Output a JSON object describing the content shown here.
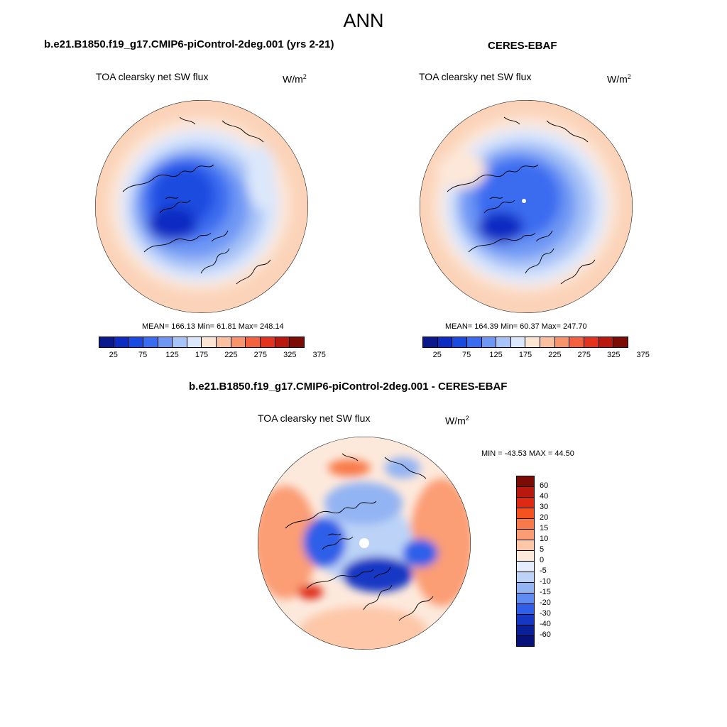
{
  "title": "ANN",
  "panels": {
    "model": {
      "title": "b.e21.B1850.f19_g17.CMIP6-piControl-2deg.001 (yrs 2-21)",
      "variable": "TOA clearsky net SW flux",
      "unit_base": "W/m",
      "unit_exp": "2",
      "stats": "MEAN= 166.13  Min=  61.81  Max= 248.14"
    },
    "obs": {
      "title": "CERES-EBAF",
      "variable": "TOA clearsky net SW flux",
      "unit_base": "W/m",
      "unit_exp": "2",
      "stats": "MEAN= 164.39  Min=  60.37  Max= 247.70"
    },
    "diff": {
      "title": "b.e21.B1850.f19_g17.CMIP6-piControl-2deg.001 - CERES-EBAF",
      "variable": "TOA clearsky net SW flux",
      "unit_base": "W/m",
      "unit_exp": "2",
      "stats": "MIN = -43.53 MAX =  44.50"
    }
  },
  "colorbars": {
    "abs_colors": [
      "#0a1a8c",
      "#0d2cc2",
      "#1a4be0",
      "#3a6cf0",
      "#6e97f4",
      "#a8c3f7",
      "#dbe7fb",
      "#fde5d3",
      "#fbc0a0",
      "#f8946c",
      "#f3613e",
      "#e3331f",
      "#b8180e",
      "#7a0b05"
    ],
    "abs_ticks": [
      "25",
      "75",
      "125",
      "175",
      "225",
      "275",
      "325",
      "375"
    ],
    "diff_colors": [
      "#7a0b05",
      "#b8180e",
      "#de2a12",
      "#f4521f",
      "#f8794a",
      "#fb9d74",
      "#fdc7a8",
      "#fde9dc",
      "#e3edfb",
      "#bcd3f7",
      "#93b4f3",
      "#5f8cf0",
      "#2f5fe8",
      "#1537c4",
      "#0a1f9a",
      "#07117a"
    ],
    "diff_ticks": [
      "60",
      "40",
      "30",
      "20",
      "15",
      "10",
      "5",
      "0",
      "-5",
      "-10",
      "-15",
      "-20",
      "-30",
      "-40",
      "-60"
    ]
  }
}
